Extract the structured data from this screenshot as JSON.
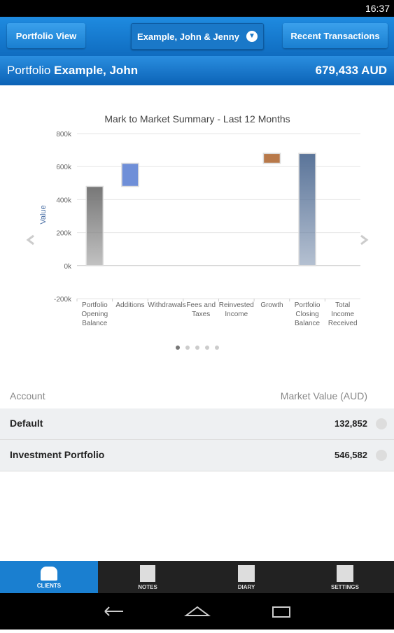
{
  "status_bar": {
    "time": "16:37"
  },
  "toolbar": {
    "left_button": "Portfolio View",
    "selector": "Example, John & Jenny",
    "right_button": "Recent Transactions"
  },
  "header": {
    "label": "Portfolio",
    "client": "Example, John",
    "total": "679,433 AUD"
  },
  "chart_data": {
    "type": "waterfall",
    "title": "Mark to Market Summary - Last 12 Months",
    "y_label": "Value",
    "categories": [
      "Portfolio Opening Balance",
      "Additions",
      "Withdrawals",
      "Fees and Taxes",
      "Reinvested Income",
      "Growth",
      "Portfolio Closing Balance",
      "Total Income Received"
    ],
    "values": [
      480000,
      140000,
      0,
      0,
      0,
      60000,
      680000,
      0
    ],
    "is_total": [
      false,
      false,
      false,
      false,
      false,
      false,
      true,
      false
    ],
    "colors": [
      "#777777",
      "#6f8fd8",
      "#c25a4a",
      "#c25a4a",
      "#6ab04c",
      "#b8794a",
      "#5a7499",
      "#6ab04c"
    ],
    "ylim": [
      -200000,
      800000
    ],
    "yticks": [
      {
        "value": -200000,
        "label": "-200k"
      },
      {
        "value": 0,
        "label": "0k"
      },
      {
        "value": 200000,
        "label": "200k"
      },
      {
        "value": 400000,
        "label": "400k"
      },
      {
        "value": 600000,
        "label": "600k"
      },
      {
        "value": 800000,
        "label": "800k"
      }
    ],
    "grid": true
  },
  "table": {
    "columns": [
      "Account",
      "Market Value (AUD)"
    ],
    "rows": [
      [
        "Default",
        "132,852"
      ],
      [
        "Investment Portfolio",
        "546,582"
      ]
    ]
  },
  "nav": {
    "tabs": [
      "CLIENTS",
      "NOTES",
      "DIARY",
      "SETTINGS"
    ]
  }
}
